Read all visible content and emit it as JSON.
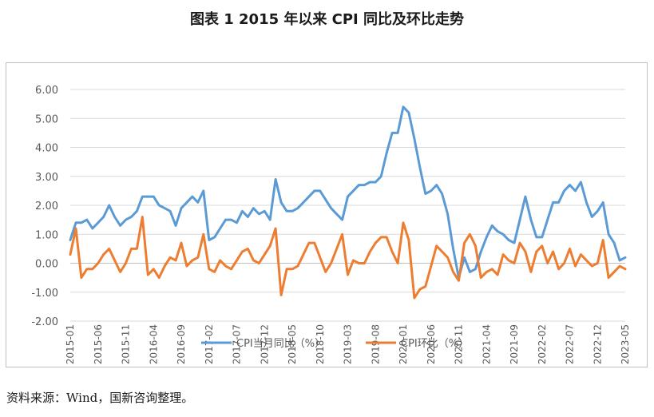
{
  "title": "图表 1  2015 年以来 CPI 同比及环比走势",
  "source": "资料来源：Wind，国新咨询整理。",
  "chart_data": {
    "type": "line",
    "title": "图表 1  2015 年以来 CPI 同比及环比走势",
    "xlabel": "",
    "ylabel": "",
    "ylim": [
      -2.0,
      6.0
    ],
    "yticks": [
      "6.00",
      "5.00",
      "4.00",
      "3.00",
      "2.00",
      "1.00",
      "0.00",
      "-1.00",
      "-2.00"
    ],
    "ytick_values": [
      6,
      5,
      4,
      3,
      2,
      1,
      0,
      -1,
      -2
    ],
    "x_start": "2015-01",
    "x_end": "2023-05",
    "xticks": [
      "2015-01",
      "2015-06",
      "2015-11",
      "2016-04",
      "2016-09",
      "2017-02",
      "2017-07",
      "2017-12",
      "2018-05",
      "2018-10",
      "2019-03",
      "2019-08",
      "2020-01",
      "2020-06",
      "2020-11",
      "2021-04",
      "2021-09",
      "2022-02",
      "2022-07",
      "2022-12",
      "2023-05"
    ],
    "grid": "horizontal",
    "legend_position": "bottom",
    "series": [
      {
        "name": "CPI当月同比（%）",
        "color": "#5B9BD5",
        "values": [
          0.8,
          1.4,
          1.4,
          1.5,
          1.2,
          1.4,
          1.6,
          2.0,
          1.6,
          1.3,
          1.5,
          1.6,
          1.8,
          2.3,
          2.3,
          2.3,
          2.0,
          1.9,
          1.8,
          1.3,
          1.9,
          2.1,
          2.3,
          2.1,
          2.5,
          0.8,
          0.9,
          1.2,
          1.5,
          1.5,
          1.4,
          1.8,
          1.6,
          1.9,
          1.7,
          1.8,
          1.5,
          2.9,
          2.1,
          1.8,
          1.8,
          1.9,
          2.1,
          2.3,
          2.5,
          2.5,
          2.2,
          1.9,
          1.7,
          1.5,
          2.3,
          2.5,
          2.7,
          2.7,
          2.8,
          2.8,
          3.0,
          3.8,
          4.5,
          4.5,
          5.4,
          5.2,
          4.3,
          3.3,
          2.4,
          2.5,
          2.7,
          2.4,
          1.7,
          0.5,
          -0.5,
          0.2,
          -0.3,
          -0.2,
          0.4,
          0.9,
          1.3,
          1.1,
          1.0,
          0.8,
          0.7,
          1.5,
          2.3,
          1.5,
          0.9,
          0.9,
          1.5,
          2.1,
          2.1,
          2.5,
          2.7,
          2.5,
          2.8,
          2.1,
          1.6,
          1.8,
          2.1,
          1.0,
          0.7,
          0.1,
          0.2
        ]
      },
      {
        "name": "CPI环比（%）",
        "color": "#ED7D31",
        "values": [
          0.3,
          1.2,
          -0.5,
          -0.2,
          -0.2,
          0.0,
          0.3,
          0.5,
          0.1,
          -0.3,
          0.0,
          0.5,
          0.5,
          1.6,
          -0.4,
          -0.2,
          -0.5,
          -0.1,
          0.2,
          0.1,
          0.7,
          -0.1,
          0.1,
          0.2,
          1.0,
          -0.2,
          -0.3,
          0.1,
          -0.1,
          -0.2,
          0.1,
          0.4,
          0.5,
          0.1,
          0.0,
          0.3,
          0.6,
          1.2,
          -1.1,
          -0.2,
          -0.2,
          -0.1,
          0.3,
          0.7,
          0.7,
          0.2,
          -0.3,
          0.0,
          0.5,
          1.0,
          -0.4,
          0.1,
          0.0,
          0.0,
          0.4,
          0.7,
          0.9,
          0.9,
          0.4,
          0.0,
          1.4,
          0.8,
          -1.2,
          -0.9,
          -0.8,
          -0.1,
          0.6,
          0.4,
          0.2,
          -0.3,
          -0.6,
          0.7,
          1.0,
          0.6,
          -0.5,
          -0.3,
          -0.2,
          -0.4,
          0.3,
          0.1,
          0.0,
          0.7,
          0.4,
          -0.3,
          0.4,
          0.6,
          0.0,
          0.4,
          -0.2,
          0.0,
          0.5,
          -0.1,
          0.3,
          0.1,
          -0.1,
          0.0,
          0.8,
          -0.5,
          -0.3,
          -0.1,
          -0.2
        ]
      }
    ]
  }
}
